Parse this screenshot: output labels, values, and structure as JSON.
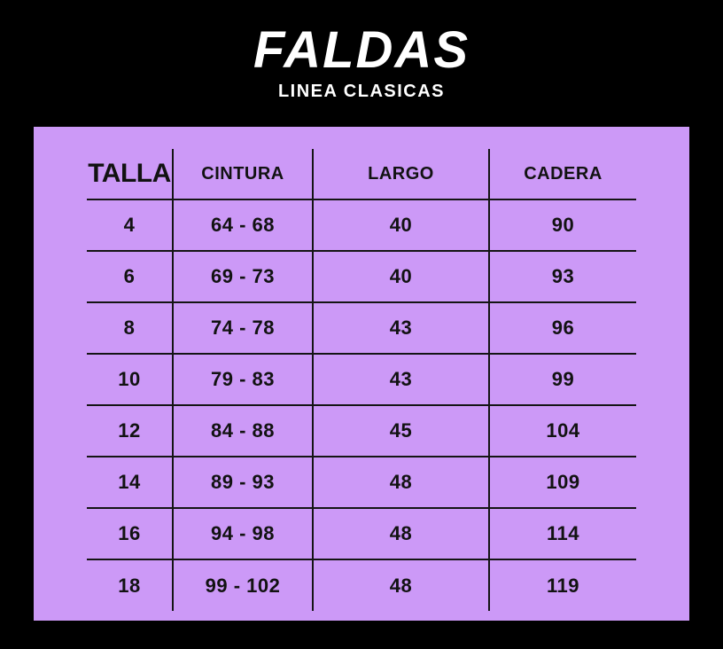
{
  "page": {
    "background_color": "#000000",
    "panel_color": "#cc99f7",
    "line_color": "#141414",
    "text_color": "#ffffff",
    "table_text_color": "#121212"
  },
  "header": {
    "title": "FALDAS",
    "subtitle": "LINEA CLASICAS"
  },
  "table": {
    "columns": [
      "TALLA",
      "CINTURA",
      "LARGO",
      "CADERA"
    ],
    "rows": [
      [
        "4",
        "64 - 68",
        "40",
        "90"
      ],
      [
        "6",
        "69 - 73",
        "40",
        "93"
      ],
      [
        "8",
        "74 - 78",
        "43",
        "96"
      ],
      [
        "10",
        "79 - 83",
        "43",
        "99"
      ],
      [
        "12",
        "84 - 88",
        "45",
        "104"
      ],
      [
        "14",
        "89 - 93",
        "48",
        "109"
      ],
      [
        "16",
        "94 - 98",
        "48",
        "114"
      ],
      [
        "18",
        "99 - 102",
        "48",
        "119"
      ]
    ]
  }
}
